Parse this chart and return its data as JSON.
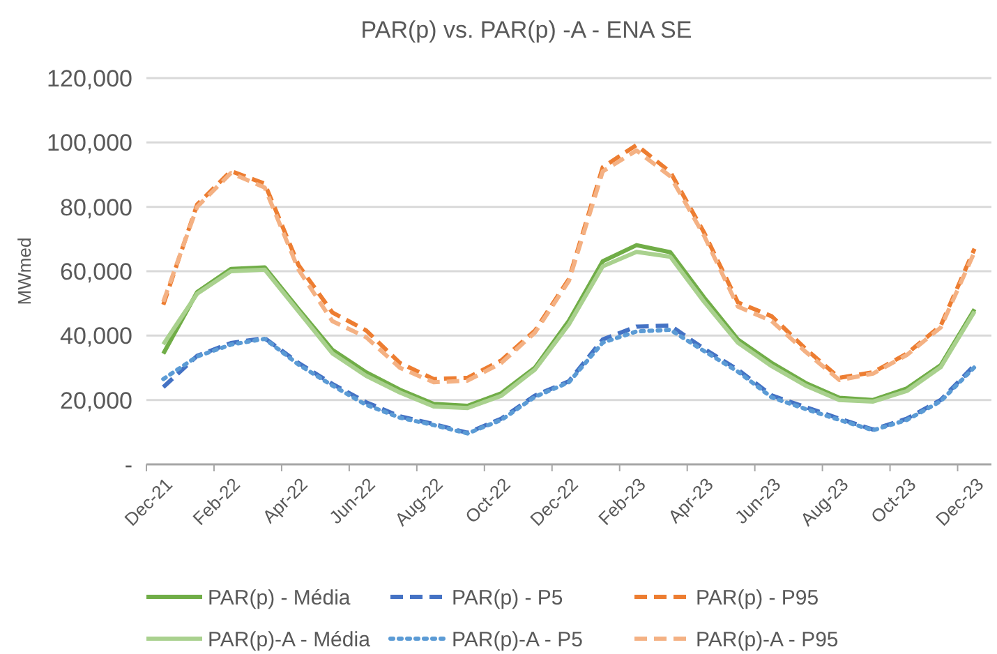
{
  "chart_data": {
    "type": "line",
    "title": "PAR(p) vs. PAR(p) -A - ENA SE",
    "ylabel": "MWmed",
    "categories": [
      "Dec-21",
      null,
      "Feb-22",
      null,
      "Apr-22",
      null,
      "Jun-22",
      null,
      "Aug-22",
      null,
      "Oct-22",
      null,
      "Dec-22",
      null,
      "Feb-23",
      null,
      "Apr-23",
      null,
      "Jun-23",
      null,
      "Aug-23",
      null,
      "Oct-23",
      null,
      "Dec-23"
    ],
    "ylim": [
      0,
      120000
    ],
    "yticks": [
      {
        "value": 0,
        "label": "-"
      },
      {
        "value": 20000,
        "label": "20,000"
      },
      {
        "value": 40000,
        "label": "40,000"
      },
      {
        "value": 60000,
        "label": "60,000"
      },
      {
        "value": 80000,
        "label": "80,000"
      },
      {
        "value": 100000,
        "label": "100,000"
      },
      {
        "value": 120000,
        "label": "120,000"
      }
    ],
    "grid": "y",
    "legend": "bottom",
    "series": [
      {
        "name": "PAR(p) - Média",
        "color": "#70ad47",
        "line_style": "solid",
        "values": [
          34400,
          53500,
          60700,
          61200,
          48200,
          35600,
          28600,
          23200,
          18800,
          18200,
          22100,
          30100,
          44600,
          63100,
          68100,
          65900,
          51800,
          38800,
          31500,
          25300,
          20700,
          20000,
          23600,
          30800,
          48200
        ]
      },
      {
        "name": "PAR(p) - P5",
        "color": "#4472c4",
        "line_style": "dashed",
        "values": [
          24000,
          33700,
          37700,
          39200,
          31500,
          25000,
          19300,
          14900,
          12500,
          9800,
          14200,
          21400,
          25800,
          38800,
          42800,
          43100,
          35900,
          29400,
          21400,
          17800,
          14200,
          10800,
          14200,
          20000,
          30800
        ]
      },
      {
        "name": "PAR(p) - P95",
        "color": "#ed7d31",
        "line_style": "dashed",
        "values": [
          49600,
          80700,
          91100,
          87200,
          61900,
          47200,
          41600,
          31500,
          26500,
          26900,
          32300,
          41600,
          57600,
          92300,
          99200,
          90800,
          72000,
          50300,
          46000,
          35900,
          26900,
          28600,
          34400,
          43100,
          67000
        ]
      },
      {
        "name": "PAR(p)-A - Média",
        "color": "#a9d18e",
        "line_style": "solid",
        "values": [
          37300,
          53000,
          60000,
          60500,
          47500,
          34500,
          27500,
          22300,
          18000,
          17500,
          21300,
          29500,
          43500,
          61500,
          66000,
          64500,
          50500,
          37800,
          30500,
          24500,
          20000,
          19500,
          22800,
          30200,
          47500
        ]
      },
      {
        "name": "PAR(p)-A - P5",
        "color": "#5b9bd5",
        "line_style": "dotted",
        "values": [
          26500,
          33500,
          37200,
          39000,
          31000,
          24500,
          18500,
          14500,
          12200,
          9600,
          13800,
          21000,
          25500,
          37800,
          41300,
          41800,
          35200,
          28800,
          20800,
          17200,
          13800,
          10600,
          13800,
          19600,
          30200
        ]
      },
      {
        "name": "PAR(p)-A - P95",
        "color": "#f4b183",
        "line_style": "dashed",
        "values": [
          50500,
          80000,
          90500,
          86000,
          60500,
          44500,
          39500,
          30000,
          25500,
          26000,
          31500,
          41000,
          57000,
          91000,
          97500,
          89500,
          71000,
          49000,
          44500,
          35000,
          26200,
          28200,
          34000,
          42500,
          66000
        ]
      }
    ]
  }
}
